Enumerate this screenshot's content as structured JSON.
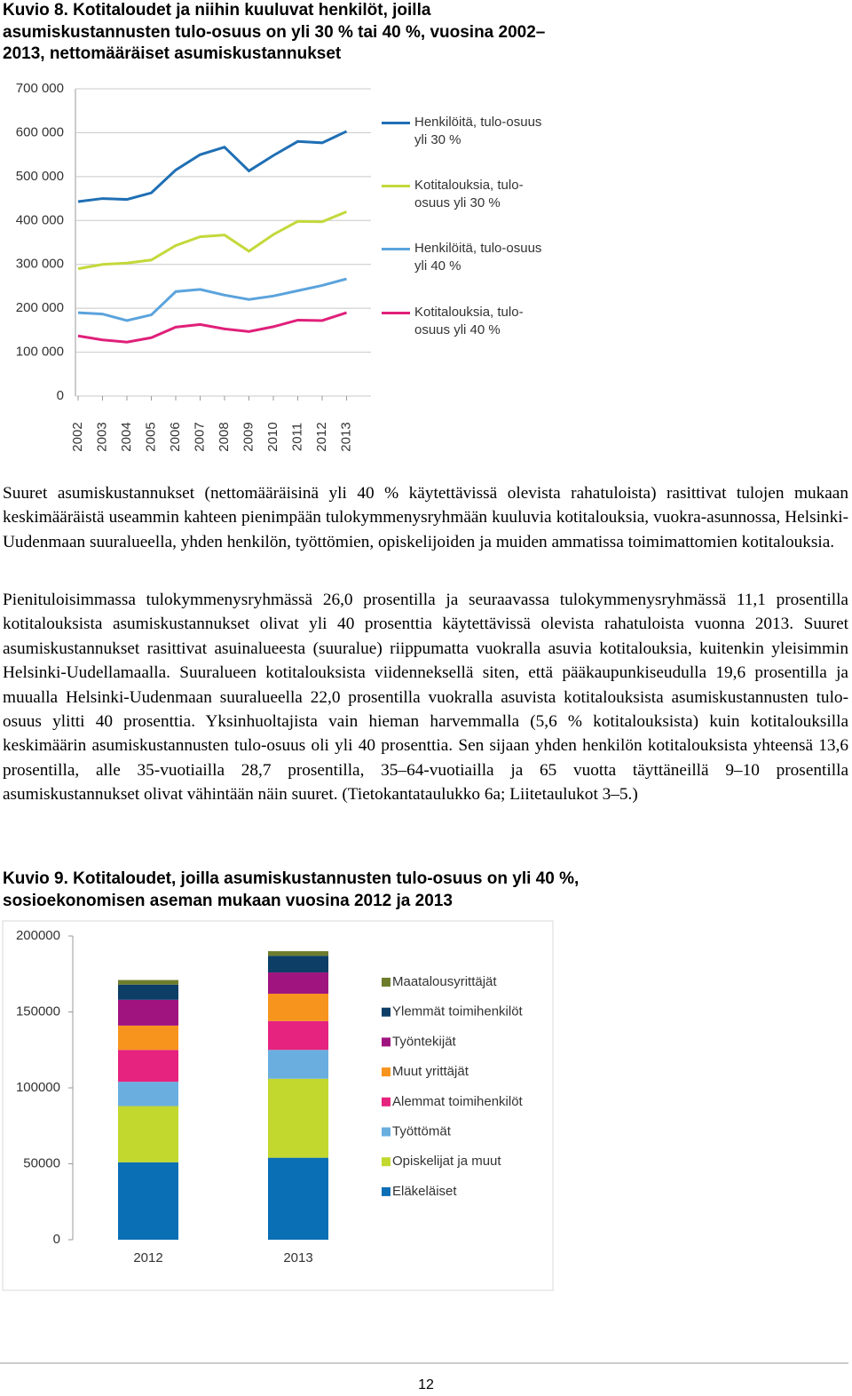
{
  "chart_data": [
    {
      "type": "line",
      "title": "Kuvio 8. Kotitaloudet ja niihin kuuluvat henkilöt, joilla asumiskustannusten tulo-osuus on yli 30 % tai 40 %, vuosina 2002–2013, nettomääräiset asumiskustannukset",
      "categories": [
        "2002",
        "2003",
        "2004",
        "2005",
        "2006",
        "2007",
        "2008",
        "2009",
        "2010",
        "2011",
        "2012",
        "2013"
      ],
      "series": [
        {
          "name": "Henkilöitä, tulo-osuus yli 30 %",
          "color": "#1f6fb4",
          "values": [
            443000,
            450000,
            448000,
            463000,
            515000,
            550000,
            567000,
            513000,
            548000,
            580000,
            577000,
            603000
          ]
        },
        {
          "name": "Kotitalouksia, tulo-osuus yli 30 %",
          "color": "#c4d83a",
          "values": [
            290000,
            300000,
            303000,
            310000,
            343000,
            363000,
            367000,
            330000,
            368000,
            398000,
            397000,
            420000
          ]
        },
        {
          "name": "Henkilöitä, tulo-osuus yli 40 %",
          "color": "#5ba3dc",
          "values": [
            190000,
            187000,
            172000,
            185000,
            238000,
            243000,
            230000,
            220000,
            228000,
            240000,
            252000,
            267000
          ]
        },
        {
          "name": "Kotitalouksia, tulo-osuus yli 40 %",
          "color": "#e0207a",
          "values": [
            137000,
            128000,
            123000,
            133000,
            157000,
            163000,
            153000,
            147000,
            158000,
            173000,
            172000,
            190000
          ]
        }
      ],
      "ylim": [
        0,
        700000
      ],
      "yticks": [
        0,
        {
          "value": 100000,
          "label": "100 000"
        },
        {
          "value": 200000,
          "label": "200 000"
        },
        {
          "value": 300000,
          "label": "300 000"
        },
        {
          "value": 400000,
          "label": "400 000"
        },
        {
          "value": 500000,
          "label": "500 000"
        },
        {
          "value": 600000,
          "label": "600 000"
        },
        {
          "value": 700000,
          "label": "700 000"
        }
      ],
      "grid": true
    },
    {
      "type": "stacked_bar",
      "title": "Kuvio 9. Kotitaloudet, joilla asumiskustannusten tulo-osuus on yli 40 %, sosioekonomisen aseman mukaan vuosina 2012 ja 2013",
      "categories": [
        "2012",
        "2013"
      ],
      "series": [
        {
          "name": "Eläkeläiset",
          "color": "#0a6fb5",
          "values": [
            51000,
            54000
          ]
        },
        {
          "name": "Opiskelijat ja muut",
          "color": "#c3d82e",
          "values": [
            37000,
            52000
          ]
        },
        {
          "name": "Työttömät",
          "color": "#6aaee0",
          "values": [
            16000,
            19000
          ]
        },
        {
          "name": "Alemmat toimihenkilöt",
          "color": "#e6237e",
          "values": [
            21000,
            19000
          ]
        },
        {
          "name": "Muut yrittäjät",
          "color": "#f7941d",
          "values": [
            16000,
            18000
          ]
        },
        {
          "name": "Työntekijät",
          "color": "#a0147f",
          "values": [
            17000,
            14000
          ]
        },
        {
          "name": "Ylemmät toimihenkilöt",
          "color": "#0c3e66",
          "values": [
            10000,
            11000
          ]
        },
        {
          "name": "Maatalousyrittäjät",
          "color": "#6d7d2b",
          "values": [
            3000,
            3000
          ]
        }
      ],
      "ylim": [
        0,
        200000
      ],
      "yticks": [
        0,
        50000,
        100000,
        150000,
        200000
      ],
      "grid": false
    }
  ],
  "paragraphs": [
    "Suuret asumiskustannukset (nettomääräisinä yli 40 % käytettävissä olevista rahatuloista) rasittivat tulojen mukaan keskimääräistä useammin kahteen pienimpään tulokymmenysryhmään kuuluvia kotitalouksia, vuokra-asunnossa, Helsinki-Uudenmaan suuralueella, yhden henkilön, työttömien, opiskelijoiden ja muiden ammatissa toimimattomien kotitalouksia.",
    "Pienituloisimmassa tulokymmenysryhmässä 26,0 prosentilla ja seuraavassa tulokymmenysryhmässä 11,1 prosentilla kotitalouksista asumiskustannukset olivat yli 40 prosenttia käytettävissä olevista rahatuloista vuonna 2013. Suuret asumiskustannukset rasittivat asuinalueesta (suuralue) riippumatta vuokralla asuvia kotitalouksia, kuitenkin yleisimmin Helsinki-Uudellamaalla. Suuralueen kotitalouksista viidenneksellä siten, että pääkaupunkiseudulla 19,6 prosentilla ja muualla Helsinki-Uudenmaan suuralueella 22,0 prosentilla vuokralla asuvista kotitalouksista asumiskustannusten tulo-osuus ylitti 40 prosenttia. Yksinhuoltajista vain hieman harvemmalla (5,6 % kotitalouksista) kuin kotitalouksilla keskimäärin asumiskustannusten tulo-osuus oli yli 40 prosenttia. Sen sijaan yhden henkilön kotitalouksista yhteensä 13,6 prosentilla, alle 35-vuotiailla 28,7 prosentilla, 35–64-vuotiailla ja 65 vuotta täyttäneillä 9–10 prosentilla asumiskustannukset olivat vähintään näin suuret. (Tietokantataulukko 6a; Liitetaulukot 3–5.)"
  ],
  "page_number": "12"
}
